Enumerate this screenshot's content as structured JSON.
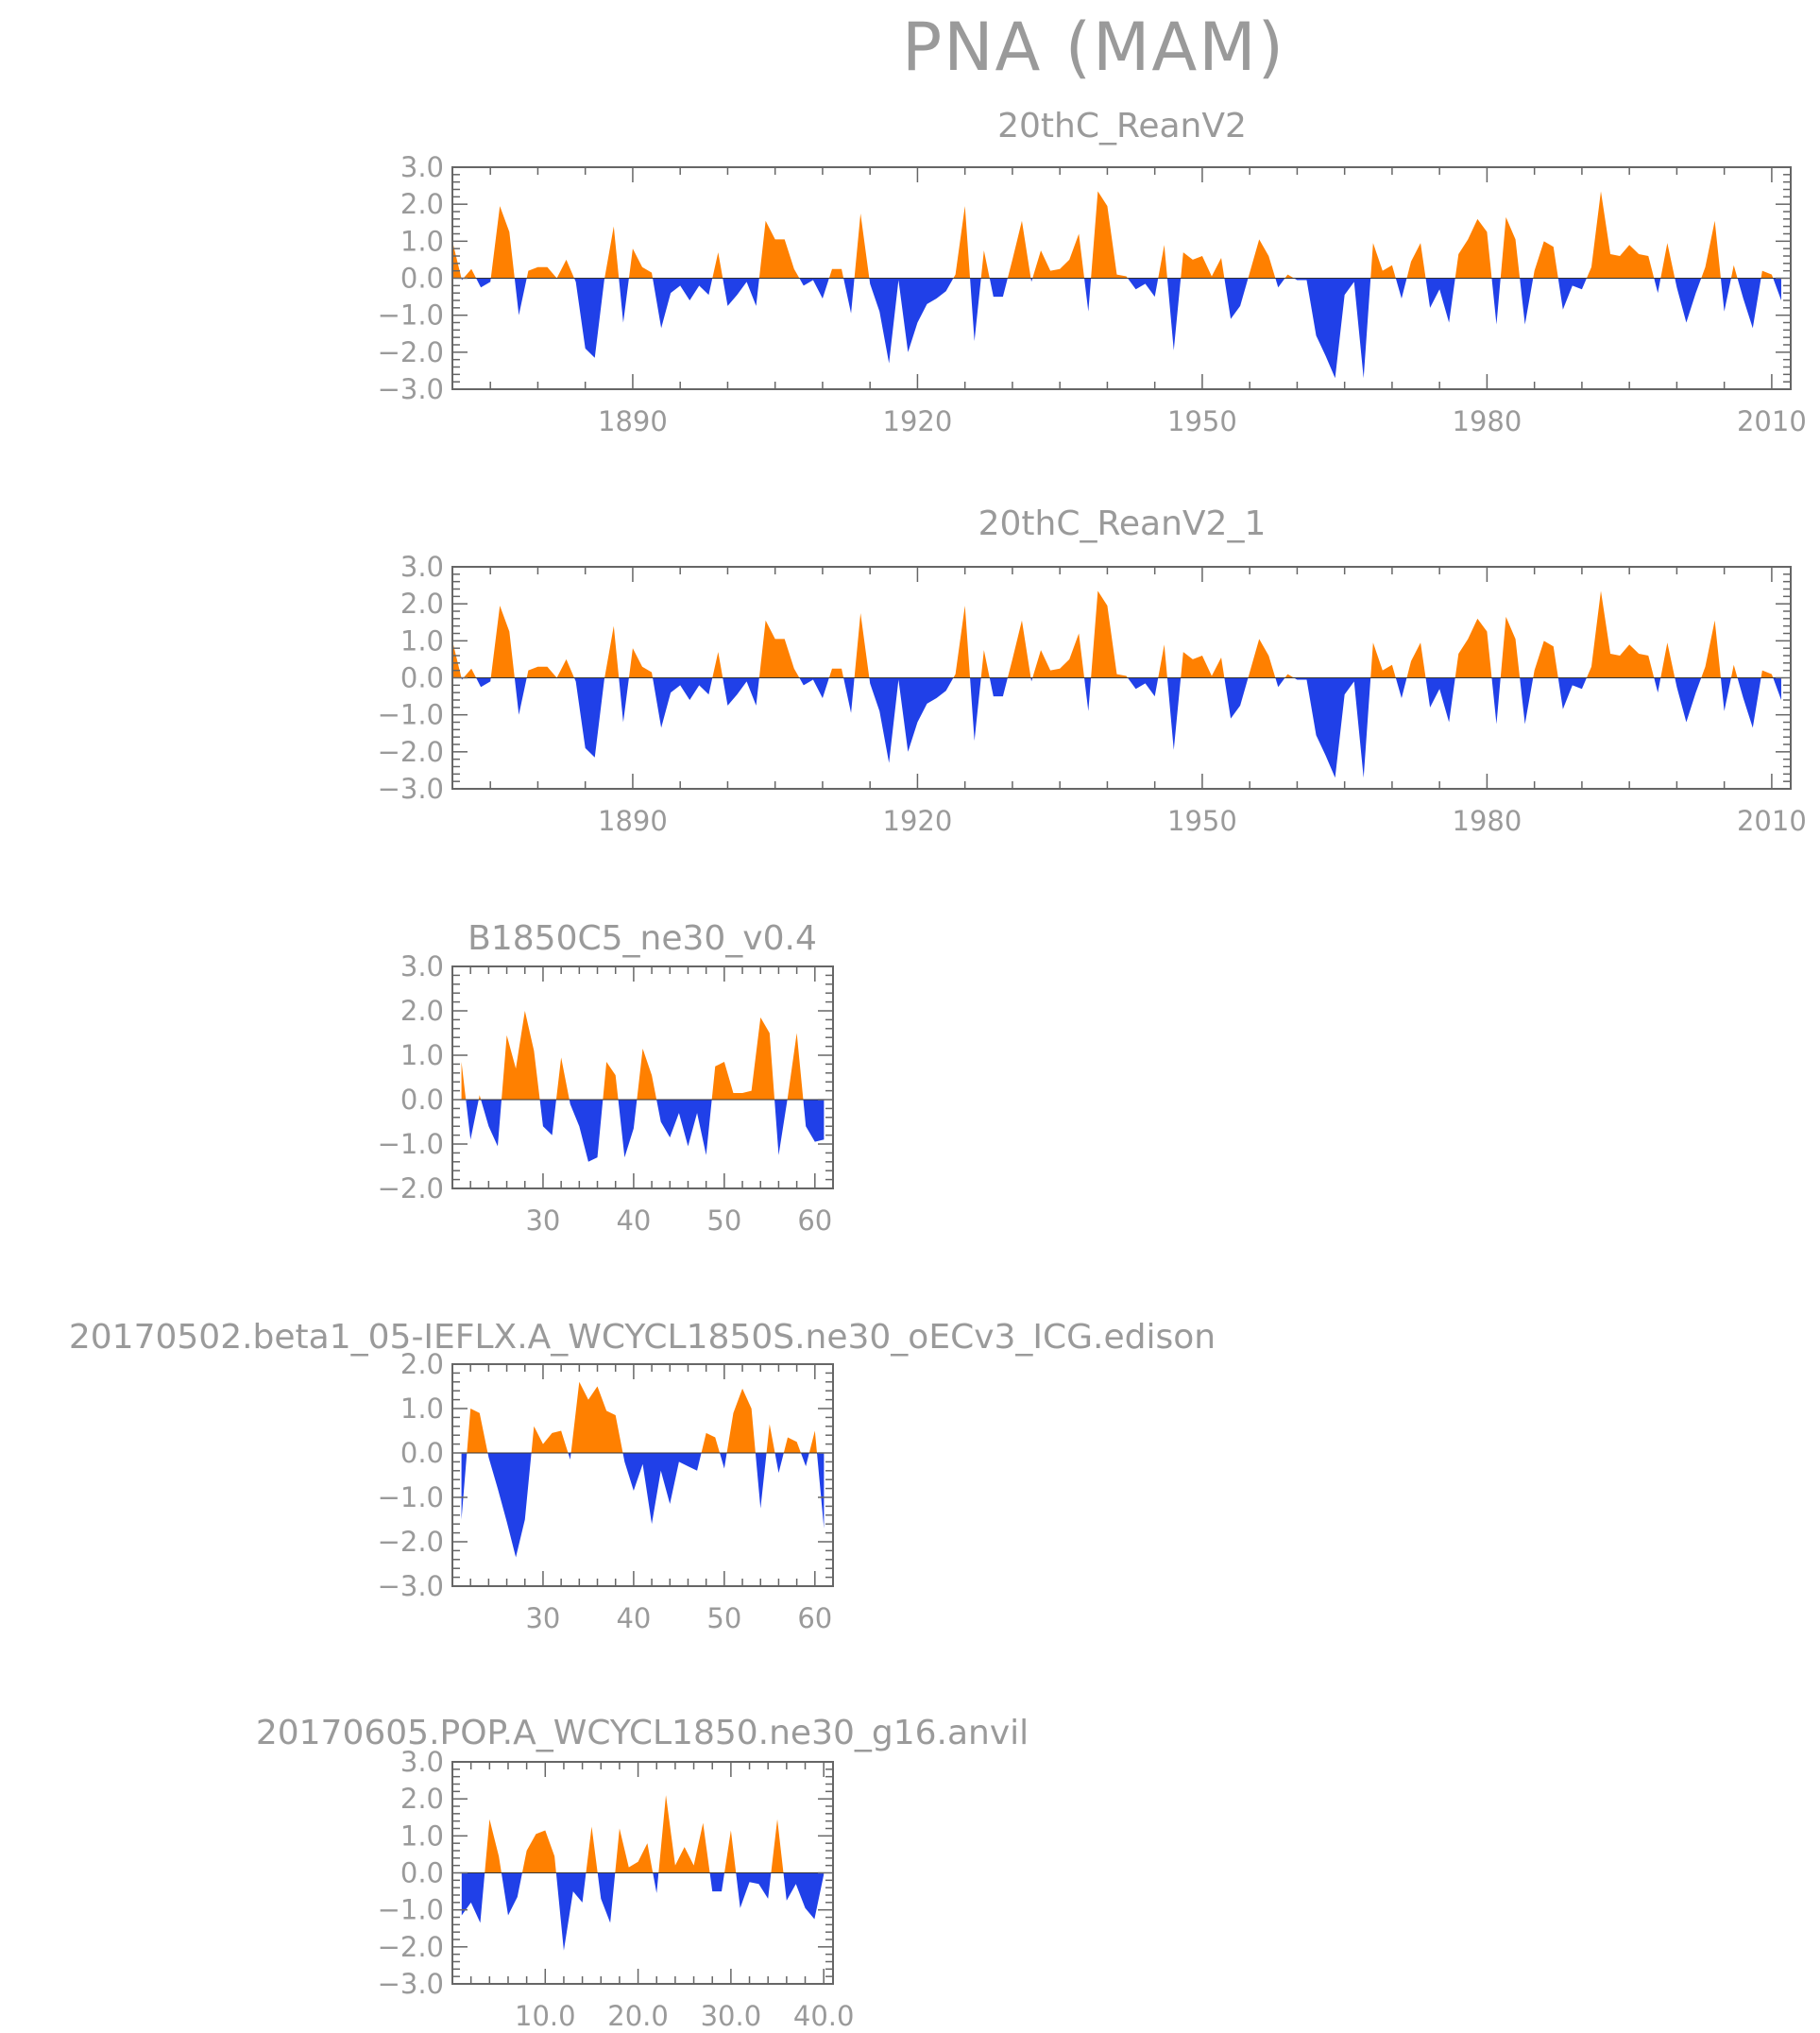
{
  "title": "PNA (MAM)",
  "colors": {
    "positive": "#ff8000",
    "negative": "#2040e8",
    "axis": "#666666",
    "text": "#9a9a9a"
  },
  "chart_data": [
    {
      "type": "area",
      "title": "20thC_ReanV2",
      "xlim": [
        1871,
        2012
      ],
      "ylim": [
        -3.0,
        3.0
      ],
      "x_ticks": [
        1890,
        1920,
        1950,
        1980,
        2010
      ],
      "x_tick_labels": [
        "1890",
        "1920",
        "1950",
        "1980",
        "2010"
      ],
      "y_ticks": [
        -3.0,
        -2.0,
        -1.0,
        0.0,
        1.0,
        2.0,
        3.0
      ],
      "y_tick_labels": [
        "-3.0",
        "-2.0",
        "-1.0",
        "0.0",
        "1.0",
        "2.0",
        "3.0"
      ],
      "x_start": 1871,
      "x_step": 1,
      "values": [
        1.0,
        -0.05,
        0.25,
        -0.25,
        -0.1,
        1.95,
        1.25,
        -1.0,
        0.2,
        0.3,
        0.3,
        0.0,
        0.5,
        -0.1,
        -1.9,
        -2.15,
        -0.05,
        1.4,
        -1.2,
        0.8,
        0.3,
        0.15,
        -1.35,
        -0.4,
        -0.2,
        -0.6,
        -0.2,
        -0.45,
        0.7,
        -0.75,
        -0.45,
        -0.1,
        -0.75,
        1.55,
        1.05,
        1.05,
        0.25,
        -0.2,
        -0.05,
        -0.55,
        0.25,
        0.25,
        -0.95,
        1.75,
        -0.15,
        -0.9,
        -2.3,
        -0.05,
        -2.0,
        -1.2,
        -0.7,
        -0.55,
        -0.35,
        0.1,
        1.95,
        -1.7,
        0.75,
        -0.5,
        -0.5,
        0.5,
        1.55,
        -0.1,
        0.75,
        0.2,
        0.25,
        0.5,
        1.2,
        -0.9,
        2.35,
        1.95,
        0.1,
        0.05,
        -0.3,
        -0.15,
        -0.5,
        0.9,
        -1.95,
        0.7,
        0.5,
        0.6,
        0.05,
        0.55,
        -1.1,
        -0.75,
        0.15,
        1.05,
        0.6,
        -0.25,
        0.1,
        -0.05,
        -0.05,
        -1.55,
        -2.1,
        -2.7,
        -0.45,
        -0.1,
        -2.7,
        0.95,
        0.2,
        0.35,
        -0.55,
        0.45,
        0.95,
        -0.8,
        -0.3,
        -1.2,
        0.65,
        1.05,
        1.6,
        1.25,
        -1.25,
        1.65,
        1.05,
        -1.25,
        0.2,
        1.0,
        0.85,
        -0.85,
        -0.2,
        -0.3,
        0.3,
        2.35,
        0.65,
        0.6,
        0.9,
        0.65,
        0.6,
        -0.4,
        0.95,
        -0.25,
        -1.2,
        -0.4,
        0.3,
        1.55,
        -0.9,
        0.35,
        -0.55,
        -1.35,
        0.2,
        0.1,
        -0.6
      ]
    },
    {
      "type": "area",
      "title": "20thC_ReanV2_1",
      "xlim": [
        1871,
        2012
      ],
      "ylim": [
        -3.0,
        3.0
      ],
      "x_ticks": [
        1890,
        1920,
        1950,
        1980,
        2010
      ],
      "x_tick_labels": [
        "1890",
        "1920",
        "1950",
        "1980",
        "2010"
      ],
      "y_ticks": [
        -3.0,
        -2.0,
        -1.0,
        0.0,
        1.0,
        2.0,
        3.0
      ],
      "y_tick_labels": [
        "-3.0",
        "-2.0",
        "-1.0",
        "0.0",
        "1.0",
        "2.0",
        "3.0"
      ],
      "x_start": 1871,
      "x_step": 1,
      "values": [
        1.0,
        -0.05,
        0.25,
        -0.25,
        -0.1,
        1.95,
        1.25,
        -1.0,
        0.2,
        0.3,
        0.3,
        0.0,
        0.5,
        -0.1,
        -1.9,
        -2.15,
        -0.05,
        1.4,
        -1.2,
        0.8,
        0.3,
        0.15,
        -1.35,
        -0.4,
        -0.2,
        -0.6,
        -0.2,
        -0.45,
        0.7,
        -0.75,
        -0.45,
        -0.1,
        -0.75,
        1.55,
        1.05,
        1.05,
        0.25,
        -0.2,
        -0.05,
        -0.55,
        0.25,
        0.25,
        -0.95,
        1.75,
        -0.15,
        -0.9,
        -2.3,
        -0.05,
        -2.0,
        -1.2,
        -0.7,
        -0.55,
        -0.35,
        0.1,
        1.95,
        -1.7,
        0.75,
        -0.5,
        -0.5,
        0.5,
        1.55,
        -0.1,
        0.75,
        0.2,
        0.25,
        0.5,
        1.2,
        -0.9,
        2.35,
        1.95,
        0.1,
        0.05,
        -0.3,
        -0.15,
        -0.5,
        0.9,
        -1.95,
        0.7,
        0.5,
        0.6,
        0.05,
        0.55,
        -1.1,
        -0.75,
        0.15,
        1.05,
        0.6,
        -0.25,
        0.1,
        -0.05,
        -0.05,
        -1.55,
        -2.1,
        -2.7,
        -0.45,
        -0.1,
        -2.7,
        0.95,
        0.2,
        0.35,
        -0.55,
        0.45,
        0.95,
        -0.8,
        -0.3,
        -1.2,
        0.65,
        1.05,
        1.6,
        1.25,
        -1.25,
        1.65,
        1.05,
        -1.25,
        0.2,
        1.0,
        0.85,
        -0.85,
        -0.2,
        -0.3,
        0.3,
        2.35,
        0.65,
        0.6,
        0.9,
        0.65,
        0.6,
        -0.4,
        0.95,
        -0.25,
        -1.2,
        -0.4,
        0.3,
        1.55,
        -0.9,
        0.35,
        -0.55,
        -1.35,
        0.2,
        0.1,
        -0.6
      ]
    },
    {
      "type": "area",
      "title": "B1850C5_ne30_v0.4",
      "xlim": [
        20,
        62
      ],
      "ylim": [
        -2.0,
        3.0
      ],
      "x_ticks": [
        30,
        40,
        50,
        60
      ],
      "x_tick_labels": [
        "30",
        "40",
        "50",
        "60"
      ],
      "y_ticks": [
        -2.0,
        -1.0,
        0.0,
        1.0,
        2.0,
        3.0
      ],
      "y_tick_labels": [
        "-2.0",
        "-1.0",
        "0.0",
        "1.0",
        "2.0",
        "3.0"
      ],
      "x_start": 21,
      "x_step": 1,
      "values": [
        0.85,
        -0.9,
        0.1,
        -0.6,
        -1.05,
        1.45,
        0.7,
        2.0,
        1.1,
        -0.6,
        -0.8,
        0.95,
        -0.1,
        -0.6,
        -1.4,
        -1.3,
        0.85,
        0.55,
        -1.3,
        -0.65,
        1.15,
        0.55,
        -0.5,
        -0.85,
        -0.3,
        -1.05,
        -0.3,
        -1.25,
        0.75,
        0.85,
        0.15,
        0.15,
        0.2,
        1.85,
        1.5,
        -1.25,
        0.05,
        1.5,
        -0.6,
        -0.95,
        -0.9
      ]
    },
    {
      "type": "area",
      "title": "20170502.beta1_05-IEFLX.A_WCYCL1850S.ne30_oECv3_ICG.edison",
      "xlim": [
        20,
        62
      ],
      "ylim": [
        -3.0,
        2.0
      ],
      "x_ticks": [
        30,
        40,
        50,
        60
      ],
      "x_tick_labels": [
        "30",
        "40",
        "50",
        "60"
      ],
      "y_ticks": [
        -3.0,
        -2.0,
        -1.0,
        0.0,
        1.0,
        2.0
      ],
      "y_tick_labels": [
        "-3.0",
        "-2.0",
        "-1.0",
        "0.0",
        "1.0",
        "2.0"
      ],
      "x_start": 21,
      "x_step": 1,
      "values": [
        -1.5,
        1.0,
        0.9,
        -0.1,
        -0.8,
        -1.55,
        -2.35,
        -1.5,
        0.6,
        0.2,
        0.45,
        0.5,
        -0.15,
        1.6,
        1.2,
        1.5,
        0.95,
        0.85,
        -0.2,
        -0.85,
        -0.25,
        -1.6,
        -0.4,
        -1.15,
        -0.2,
        -0.3,
        -0.4,
        0.45,
        0.35,
        -0.35,
        0.9,
        1.45,
        1.0,
        -1.25,
        0.65,
        -0.45,
        0.35,
        0.25,
        -0.3,
        0.5,
        -1.7
      ]
    },
    {
      "type": "area",
      "title": "20170605.POP.A_WCYCL1850.ne30_g16.anvil",
      "xlim": [
        0,
        41
      ],
      "ylim": [
        -3.0,
        3.0
      ],
      "x_ticks": [
        10,
        20,
        30,
        40
      ],
      "x_tick_labels": [
        "10.0",
        "20.0",
        "30.0",
        "40.0"
      ],
      "y_ticks": [
        -3.0,
        -2.0,
        -1.0,
        0.0,
        1.0,
        2.0,
        3.0
      ],
      "y_tick_labels": [
        "-3.0",
        "-2.0",
        "-1.0",
        "0.0",
        "1.0",
        "2.0",
        "3.0"
      ],
      "x_start": 1,
      "x_step": 1,
      "values": [
        -1.15,
        -0.8,
        -1.35,
        1.45,
        0.45,
        -1.15,
        -0.65,
        0.6,
        1.05,
        1.15,
        0.45,
        -2.1,
        -0.5,
        -0.8,
        1.25,
        -0.7,
        -1.35,
        1.2,
        0.15,
        0.3,
        0.8,
        -0.55,
        2.1,
        0.2,
        0.7,
        0.2,
        1.35,
        -0.5,
        -0.5,
        1.15,
        -0.95,
        -0.25,
        -0.3,
        -0.7,
        1.45,
        -0.75,
        -0.3,
        -0.95,
        -1.25,
        -0.05
      ]
    }
  ]
}
